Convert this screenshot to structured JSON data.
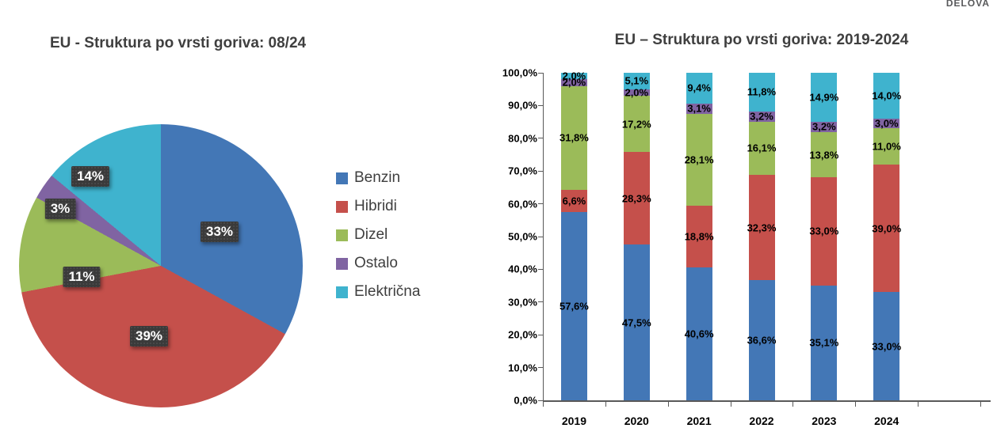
{
  "watermark": "DELOVA",
  "palette": {
    "benzin": "#4377B6",
    "hibridi": "#C5504B",
    "dizel": "#9BBB59",
    "ostalo": "#8064A2",
    "elektricna": "#3FB3CE"
  },
  "chart_data": [
    {
      "type": "pie",
      "title": "EU - Struktura po vrsti goriva: 08/24",
      "labels": [
        "Benzin",
        "Hibridi",
        "Dizel",
        "Ostalo",
        "Električna"
      ],
      "values": [
        33,
        39,
        11,
        3,
        14
      ],
      "value_labels": [
        "33%",
        "39%",
        "11%",
        "3%",
        "14%"
      ],
      "colors": [
        "#4377B6",
        "#C5504B",
        "#9BBB59",
        "#8064A2",
        "#3FB3CE"
      ],
      "start_angle_deg": 0,
      "direction": "clockwise",
      "legend_position": "right",
      "legend_labels": [
        "Benzin",
        "Hibridi",
        "Dizel",
        "Ostalo",
        "Električna"
      ]
    },
    {
      "type": "bar",
      "subtype": "stacked-100pct",
      "title": "EU – Struktura po vrsti goriva: 2019-2024",
      "categories": [
        "2019",
        "2020",
        "2021",
        "2022",
        "2023",
        "2024"
      ],
      "series": [
        {
          "name": "Benzin",
          "color": "#4377B6",
          "values": [
            57.6,
            47.5,
            40.6,
            36.6,
            35.1,
            33.0
          ],
          "labels": [
            "57,6%",
            "47,5%",
            "40,6%",
            "36,6%",
            "35,1%",
            "33,0%"
          ]
        },
        {
          "name": "Hibridi",
          "color": "#C5504B",
          "values": [
            6.6,
            28.3,
            18.8,
            32.3,
            33.0,
            39.0
          ],
          "labels": [
            "6,6%",
            "28,3%",
            "18,8%",
            "32,3%",
            "33,0%",
            "39,0%"
          ]
        },
        {
          "name": "Dizel",
          "color": "#9BBB59",
          "values": [
            31.8,
            17.2,
            28.1,
            16.1,
            13.8,
            11.0
          ],
          "labels": [
            "31,8%",
            "17,2%",
            "28,1%",
            "16,1%",
            "13,8%",
            "11,0%"
          ]
        },
        {
          "name": "Ostalo",
          "color": "#8064A2",
          "values": [
            2.0,
            2.0,
            3.1,
            3.2,
            3.2,
            3.0
          ],
          "labels": [
            "2,0%",
            "2,0%",
            "3,1%",
            "3,2%",
            "3,2%",
            "3,0%"
          ]
        },
        {
          "name": "Električna",
          "color": "#3FB3CE",
          "values": [
            2.0,
            5.1,
            9.4,
            11.8,
            14.9,
            14.0
          ],
          "labels": [
            "2,0%",
            "5,1%",
            "9,4%",
            "11,8%",
            "14,9%",
            "14,0%"
          ]
        }
      ],
      "y_axis": {
        "min": 0,
        "max": 100,
        "step": 10,
        "tick_labels": [
          "0,0%",
          "10,0%",
          "20,0%",
          "30,0%",
          "40,0%",
          "50,0%",
          "60,0%",
          "70,0%",
          "80,0%",
          "90,0%",
          "100,0%"
        ]
      },
      "grid": false,
      "legend_position": "none"
    }
  ]
}
